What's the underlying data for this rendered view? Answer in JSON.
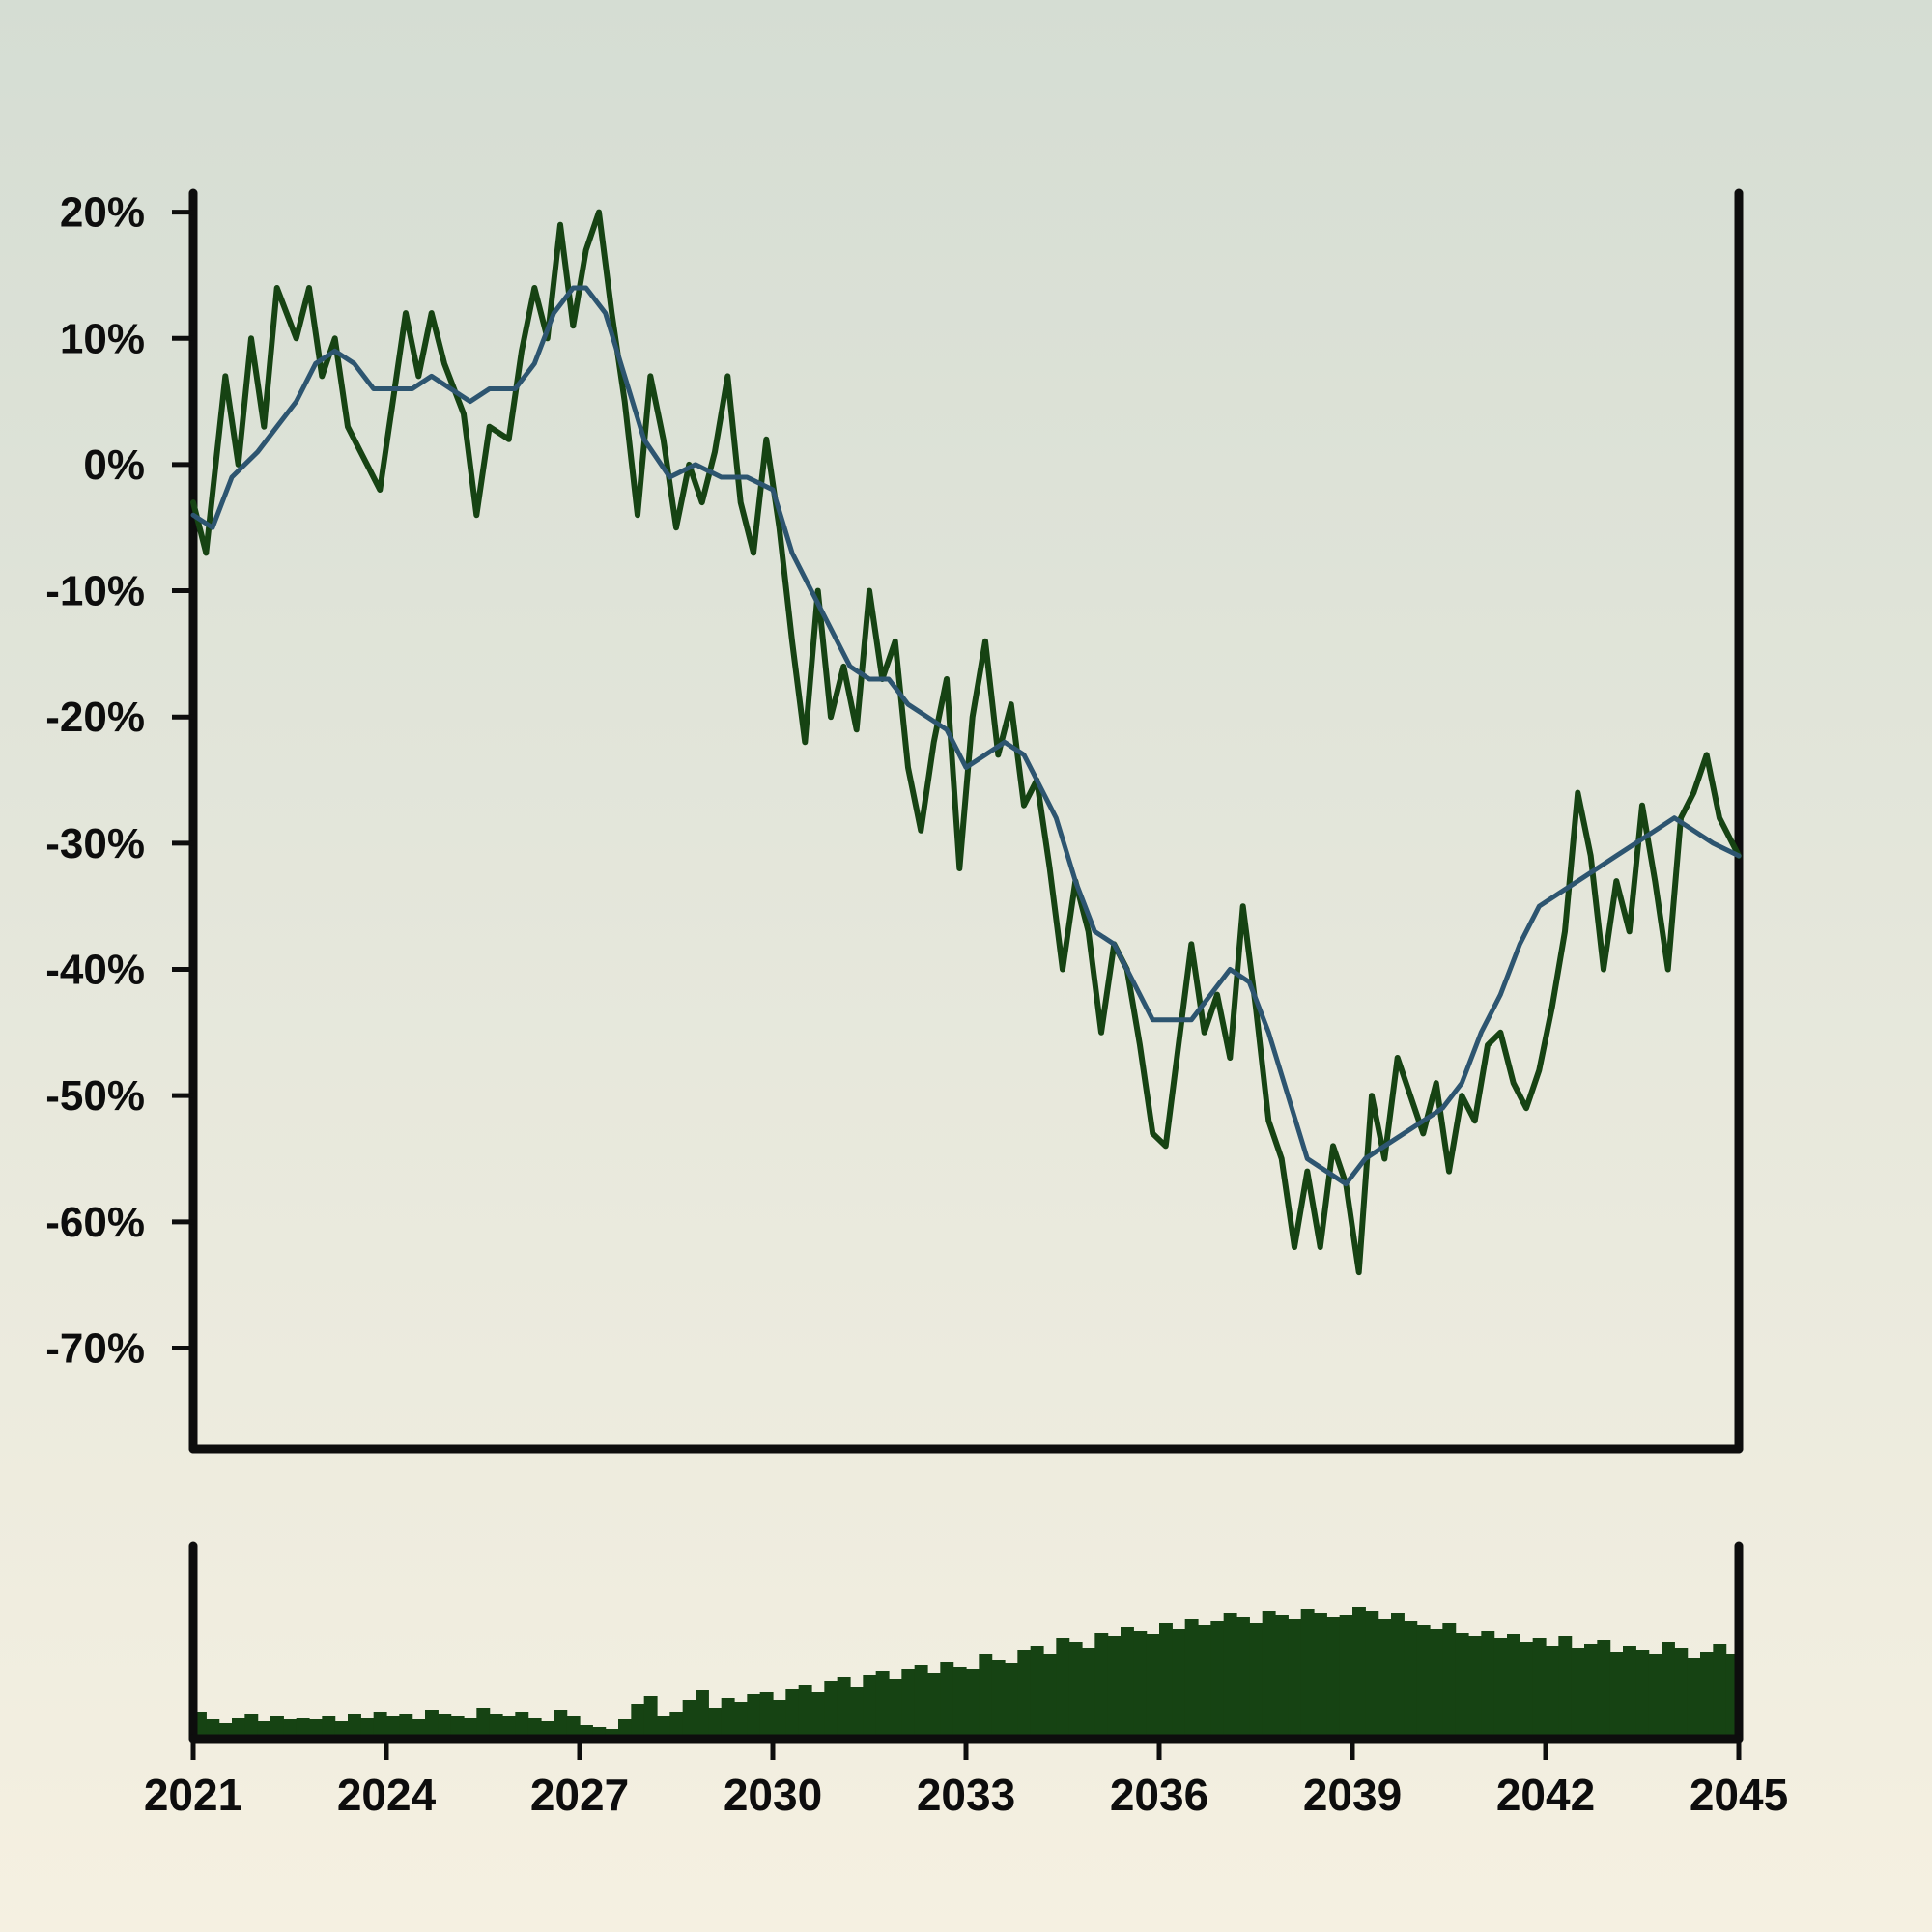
{
  "chart_data": {
    "type": "line",
    "title": "",
    "xlabel": "",
    "ylabel": "",
    "x_range": [
      2021,
      2045
    ],
    "x_ticks": [
      2021,
      2024,
      2027,
      2030,
      2033,
      2036,
      2039,
      2042,
      2045
    ],
    "x_tick_labels": [
      "2021",
      "2024",
      "2027",
      "2030",
      "2033",
      "2036",
      "2039",
      "2042",
      "2045"
    ],
    "ylim": [
      -78,
      21.5
    ],
    "y_ticks": [
      20,
      10,
      0,
      -10,
      -20,
      -30,
      -40,
      -50,
      -60,
      -70
    ],
    "y_tick_labels": [
      "20%",
      "10%",
      "0%",
      "-10%",
      "-20%",
      "-30%",
      "-40%",
      "-50%",
      "-60%",
      "-70%"
    ],
    "grid": false,
    "legend": "none",
    "colors": {
      "price": "#164313",
      "moving_average": "#2d5570",
      "volume": "#164313",
      "axes": "#0d0d0d"
    },
    "series": [
      {
        "role": "price",
        "x": [
          2021.0,
          2021.2,
          2021.5,
          2021.7,
          2021.9,
          2022.1,
          2022.3,
          2022.6,
          2022.8,
          2023.0,
          2023.2,
          2023.4,
          2023.7,
          2023.9,
          2024.1,
          2024.3,
          2024.5,
          2024.7,
          2024.9,
          2025.2,
          2025.4,
          2025.6,
          2025.9,
          2026.1,
          2026.3,
          2026.5,
          2026.7,
          2026.9,
          2027.1,
          2027.3,
          2027.5,
          2027.7,
          2027.9,
          2028.1,
          2028.3,
          2028.5,
          2028.7,
          2028.9,
          2029.1,
          2029.3,
          2029.5,
          2029.7,
          2029.9,
          2030.1,
          2030.3,
          2030.5,
          2030.7,
          2030.9,
          2031.1,
          2031.3,
          2031.5,
          2031.7,
          2031.9,
          2032.1,
          2032.3,
          2032.5,
          2032.7,
          2032.9,
          2033.1,
          2033.3,
          2033.5,
          2033.7,
          2033.9,
          2034.1,
          2034.3,
          2034.5,
          2034.7,
          2034.9,
          2035.1,
          2035.3,
          2035.5,
          2035.7,
          2035.9,
          2036.1,
          2036.3,
          2036.5,
          2036.7,
          2036.9,
          2037.1,
          2037.3,
          2037.5,
          2037.7,
          2037.9,
          2038.1,
          2038.3,
          2038.5,
          2038.7,
          2038.9,
          2039.1,
          2039.3,
          2039.5,
          2039.7,
          2039.9,
          2040.1,
          2040.3,
          2040.5,
          2040.7,
          2040.9,
          2041.1,
          2041.3,
          2041.5,
          2041.7,
          2041.9,
          2042.1,
          2042.3,
          2042.5,
          2042.7,
          2042.9,
          2043.1,
          2043.3,
          2043.5,
          2043.7,
          2043.9,
          2044.1,
          2044.3,
          2044.5,
          2044.7,
          2045.0
        ],
        "y": [
          -3,
          -7,
          7,
          0,
          10,
          3,
          14,
          10,
          14,
          7,
          10,
          3,
          0,
          -2,
          5,
          12,
          7,
          12,
          8,
          4,
          -4,
          3,
          2,
          9,
          14,
          10,
          19,
          11,
          17,
          20,
          12,
          5,
          -4,
          7,
          2,
          -5,
          0,
          -3,
          1,
          7,
          -3,
          -7,
          2,
          -5,
          -14,
          -22,
          -10,
          -20,
          -16,
          -21,
          -10,
          -17,
          -14,
          -24,
          -29,
          -22,
          -17,
          -32,
          -20,
          -14,
          -23,
          -19,
          -27,
          -25,
          -32,
          -40,
          -33,
          -37,
          -45,
          -38,
          -40,
          -46,
          -53,
          -54,
          -46,
          -38,
          -45,
          -42,
          -47,
          -35,
          -43,
          -52,
          -55,
          -62,
          -56,
          -62,
          -54,
          -57,
          -64,
          -50,
          -55,
          -47,
          -50,
          -53,
          -49,
          -56,
          -50,
          -52,
          -46,
          -45,
          -49,
          -51,
          -48,
          -43,
          -37,
          -26,
          -31,
          -40,
          -33,
          -37,
          -27,
          -33,
          -40,
          -28,
          -26,
          -23,
          -28,
          -31
        ]
      },
      {
        "role": "moving_average",
        "x": [
          2021.0,
          2021.3,
          2021.6,
          2022.0,
          2022.3,
          2022.6,
          2022.9,
          2023.2,
          2023.5,
          2023.8,
          2024.1,
          2024.4,
          2024.7,
          2025.0,
          2025.3,
          2025.6,
          2026.0,
          2026.3,
          2026.6,
          2026.9,
          2027.1,
          2027.4,
          2027.7,
          2028.0,
          2028.4,
          2028.8,
          2029.2,
          2029.6,
          2030.0,
          2030.3,
          2030.6,
          2030.9,
          2031.2,
          2031.5,
          2031.8,
          2032.1,
          2032.4,
          2032.7,
          2033.0,
          2033.3,
          2033.6,
          2033.9,
          2034.1,
          2034.4,
          2034.7,
          2035.0,
          2035.3,
          2035.6,
          2035.9,
          2036.2,
          2036.5,
          2036.8,
          2037.1,
          2037.4,
          2037.7,
          2038.0,
          2038.3,
          2038.6,
          2038.9,
          2039.2,
          2039.5,
          2039.8,
          2040.1,
          2040.4,
          2040.7,
          2041.0,
          2041.3,
          2041.6,
          2041.9,
          2042.2,
          2042.5,
          2042.8,
          2043.1,
          2043.4,
          2043.7,
          2044.0,
          2044.3,
          2044.6,
          2045.0
        ],
        "y": [
          -4,
          -5,
          -1,
          1,
          3,
          5,
          8,
          9,
          8,
          6,
          6,
          6,
          7,
          6,
          5,
          6,
          6,
          8,
          12,
          14,
          14,
          12,
          7,
          2,
          -1,
          0,
          -1,
          -1,
          -2,
          -7,
          -10,
          -13,
          -16,
          -17,
          -17,
          -19,
          -20,
          -21,
          -24,
          -23,
          -22,
          -23,
          -25,
          -28,
          -33,
          -37,
          -38,
          -41,
          -44,
          -44,
          -44,
          -42,
          -40,
          -41,
          -45,
          -50,
          -55,
          -56,
          -57,
          -55,
          -54,
          -53,
          -52,
          -51,
          -49,
          -45,
          -42,
          -38,
          -35,
          -34,
          -33,
          -32,
          -31,
          -30,
          -29,
          -28,
          -29,
          -30,
          -31
        ]
      }
    ],
    "volume_panel": {
      "type": "bar",
      "x_range": [
        2021,
        2045
      ],
      "note_ylim": [
        0,
        100
      ],
      "values": [
        14,
        10,
        8,
        11,
        13,
        9,
        12,
        10,
        11,
        10,
        12,
        9,
        13,
        11,
        14,
        12,
        13,
        10,
        15,
        13,
        12,
        11,
        16,
        13,
        12,
        14,
        11,
        9,
        15,
        12,
        7,
        6,
        5,
        10,
        18,
        22,
        12,
        14,
        20,
        25,
        16,
        21,
        19,
        23,
        24,
        20,
        26,
        28,
        24,
        30,
        32,
        27,
        33,
        35,
        31,
        36,
        38,
        34,
        40,
        37,
        36,
        44,
        41,
        39,
        46,
        48,
        44,
        52,
        50,
        47,
        55,
        53,
        58,
        56,
        54,
        60,
        57,
        62,
        59,
        61,
        65,
        63,
        60,
        66,
        64,
        62,
        67,
        65,
        63,
        64,
        68,
        66,
        62,
        65,
        61,
        59,
        57,
        60,
        55,
        53,
        56,
        52,
        54,
        50,
        52,
        48,
        53,
        47,
        49,
        51,
        45,
        48,
        46,
        44,
        50,
        47,
        42,
        45,
        49,
        44
      ]
    }
  }
}
